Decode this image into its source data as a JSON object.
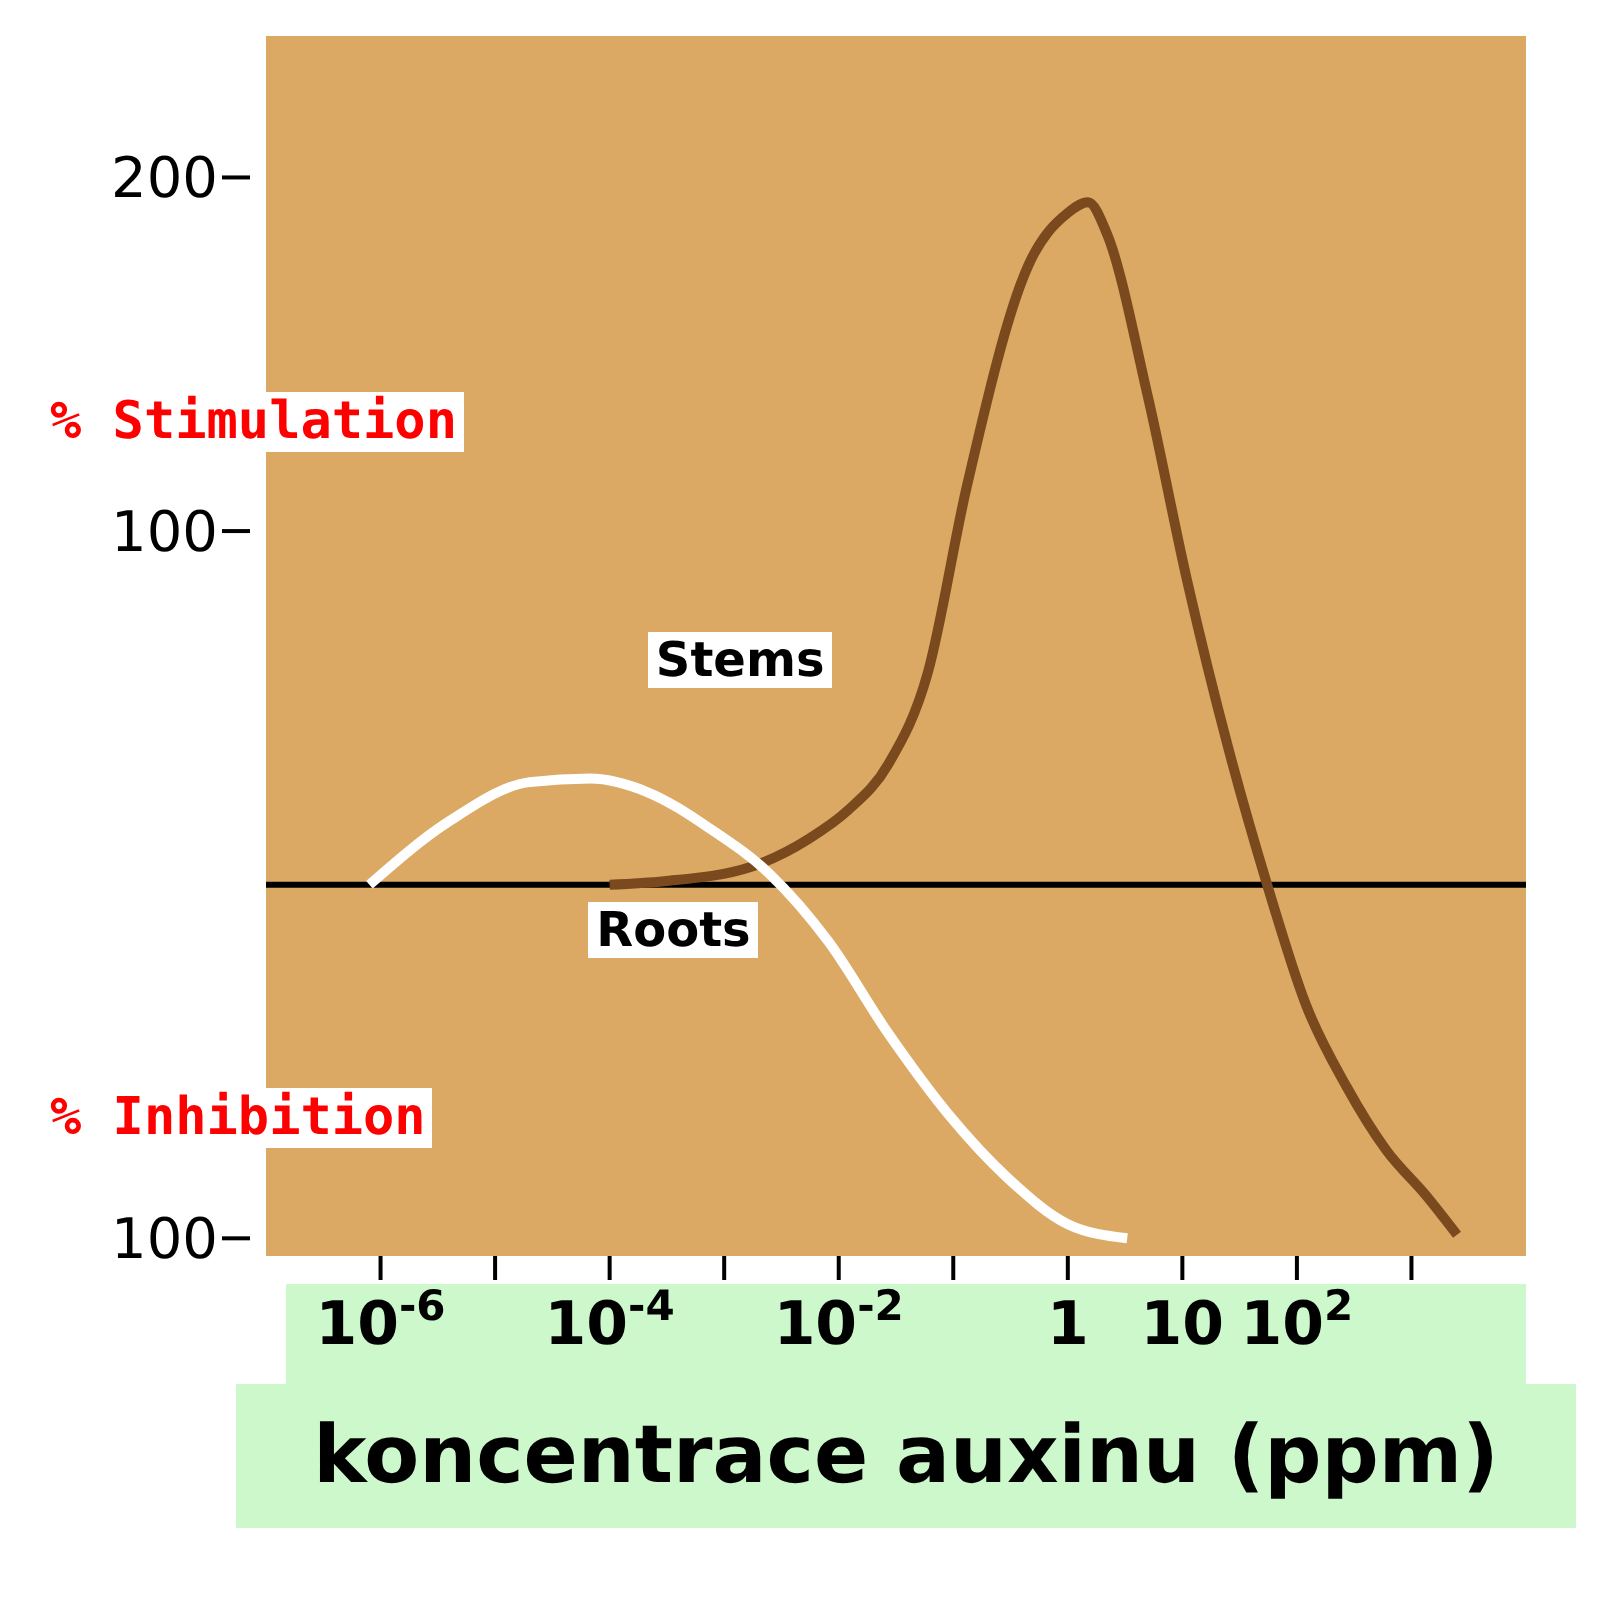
{
  "chart_data": {
    "type": "line",
    "xlabel": "koncentrace auxinu (ppm)",
    "annotations": [
      "% Stimulation",
      "% Inhibition"
    ],
    "log": "x",
    "xlim": [
      1e-07,
      10000
    ],
    "xticks": [
      {
        "value": 1e-06,
        "label": "10$^{-6}$"
      },
      {
        "value": 1e-05,
        "label": null
      },
      {
        "value": 0.0001,
        "label": "10$^{-4}$"
      },
      {
        "value": 0.001,
        "label": null
      },
      {
        "value": 0.01,
        "label": "10$^{-2}$"
      },
      {
        "value": 0.1,
        "label": null
      },
      1,
      10,
      {
        "value": 100,
        "label": "10$^{2}$"
      },
      {
        "value": 1000,
        "label": null
      }
    ],
    "ylim": [
      -105,
      240
    ],
    "yticks": [
      {
        "value": -100,
        "label": "100"
      },
      100,
      200
    ],
    "ref_lines": [
      {
        "axis": "y",
        "value": 0,
        "color": "#000000"
      }
    ],
    "legend": false,
    "marker": "none",
    "line_style": "solid",
    "series": [
      {
        "name": "Stems",
        "color": "#7a4a1e",
        "x": [
          0.0001,
          0.0003,
          0.0017,
          0.0055,
          0.012,
          0.027,
          0.06,
          0.13,
          0.45,
          1,
          1.5,
          2.2,
          5,
          11,
          25,
          55,
          120,
          270,
          600,
          1350,
          2500
        ],
        "values": [
          0,
          1,
          5,
          13,
          21,
          34,
          60,
          112,
          175,
          190,
          193,
          184,
          138,
          86,
          39,
          0,
          -34,
          -57,
          -75,
          -88,
          -99
        ]
      },
      {
        "name": "Roots",
        "color": "#ffffff",
        "x": [
          8e-07,
          4e-06,
          2e-05,
          6.8e-05,
          0.00022,
          0.00074,
          0.0025,
          0.0081,
          0.027,
          0.091,
          0.3,
          1,
          3.3
        ],
        "values": [
          0,
          18,
          29,
          30,
          26,
          16,
          3,
          -16,
          -42,
          -65,
          -83,
          -96,
          -100
        ]
      }
    ]
  }
}
